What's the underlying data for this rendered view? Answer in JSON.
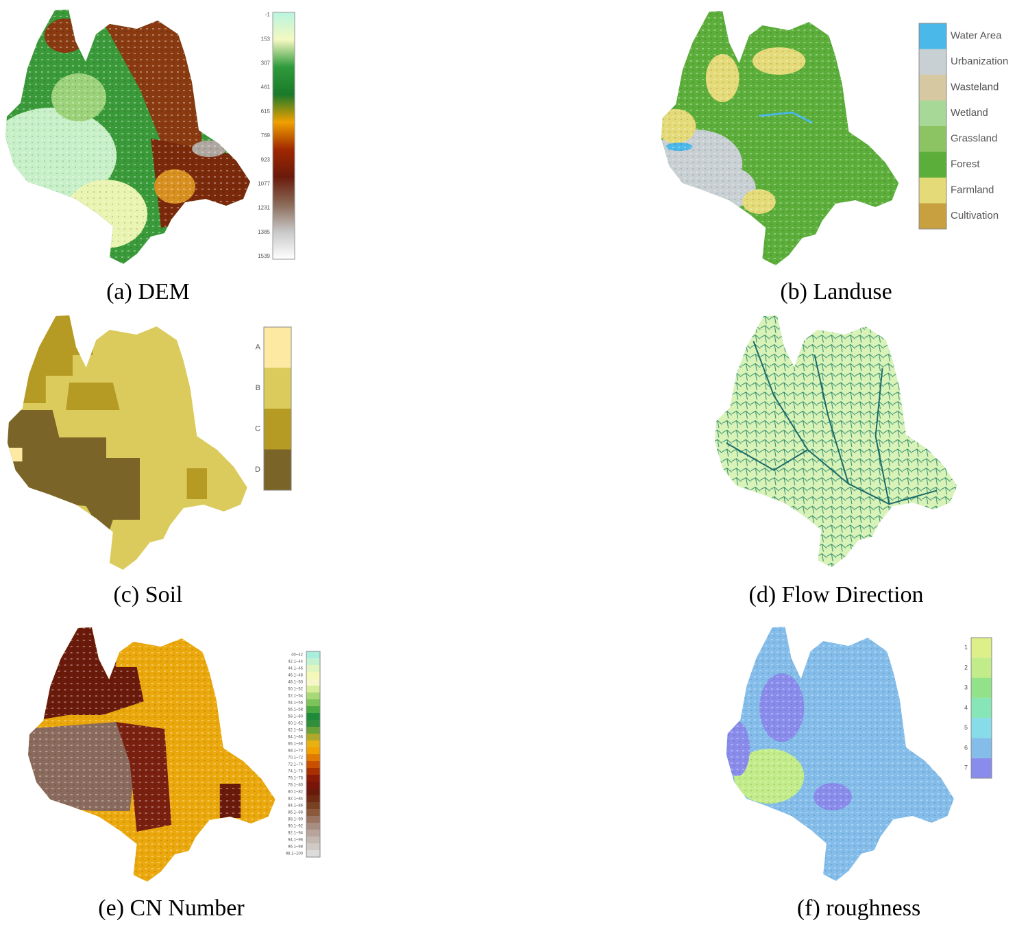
{
  "panels": [
    {
      "caption": "(a) DEM",
      "legend": {
        "labels": [
          "-1",
          "153",
          "307",
          "461",
          "615",
          "769",
          "923",
          "1077",
          "1231",
          "1385",
          "1539"
        ],
        "colors": [
          "#b8f5e0",
          "#f5f8c0",
          "#2e9a3a",
          "#1a7a2a",
          "#f0a000",
          "#a02800",
          "#6a1a0a",
          "#8a6a58",
          "#c8c8c8",
          "#ffffff"
        ]
      }
    },
    {
      "caption": "(b) Landuse",
      "legend": {
        "labels": [
          "Water Area",
          "Urbanization",
          "Wasteland",
          "Wetland",
          "Grassland",
          "Forest",
          "Farmland",
          "Cultivation"
        ],
        "colors": [
          "#4ab8e8",
          "#c8d0d4",
          "#d6c8a0",
          "#a8d898",
          "#8cc464",
          "#5cae3a",
          "#e4da78",
          "#c8a040"
        ]
      }
    },
    {
      "caption": "(c) Soil",
      "legend": {
        "labels": [
          "A",
          "B",
          "C",
          "D"
        ],
        "colors": [
          "#fde9a2",
          "#dacb5c",
          "#b59a24",
          "#7a6428"
        ]
      }
    },
    {
      "caption": "(d) Flow Direction"
    },
    {
      "caption": "(e) CN Number",
      "legend": {
        "labels": [
          "40~42",
          "42.1~44",
          "44.1~46",
          "46.1~48",
          "48.1~50",
          "50.1~52",
          "52.1~54",
          "54.1~56",
          "56.1~58",
          "58.1~60",
          "60.1~62",
          "62.1~64",
          "64.1~66",
          "66.1~68",
          "68.1~70",
          "70.1~72",
          "72.1~74",
          "74.1~76",
          "76.1~78",
          "78.1~80",
          "80.1~82",
          "82.1~84",
          "84.1~86",
          "86.1~88",
          "88.1~90",
          "90.1~92",
          "92.1~94",
          "94.1~96",
          "96.1~98",
          "98.1~100"
        ],
        "colors": [
          "#a8eedd",
          "#c4f2d0",
          "#e0f5c0",
          "#f3f8b8",
          "#f6f6c8",
          "#d6ee9a",
          "#a8d878",
          "#7cc45a",
          "#4aa940",
          "#1f8a3a",
          "#2f8f3a",
          "#6aa238",
          "#b0a82a",
          "#e8b010",
          "#f0a000",
          "#e07a00",
          "#c85000",
          "#a83000",
          "#8a1a08",
          "#7a1408",
          "#6a1a0a",
          "#6e2a12",
          "#7a4022",
          "#8a5a3a",
          "#9a7460",
          "#a88e80",
          "#b8a49a",
          "#c4b8b2",
          "#d0cac6",
          "#dcdcdc"
        ]
      }
    },
    {
      "caption": "(f) roughness",
      "legend": {
        "labels": [
          "1",
          "2",
          "3",
          "4",
          "5",
          "6",
          "7"
        ],
        "colors": [
          "#dcef88",
          "#c2ec8a",
          "#92e28a",
          "#86e6b8",
          "#86dce8",
          "#84bdea",
          "#8a8cec"
        ]
      }
    }
  ]
}
